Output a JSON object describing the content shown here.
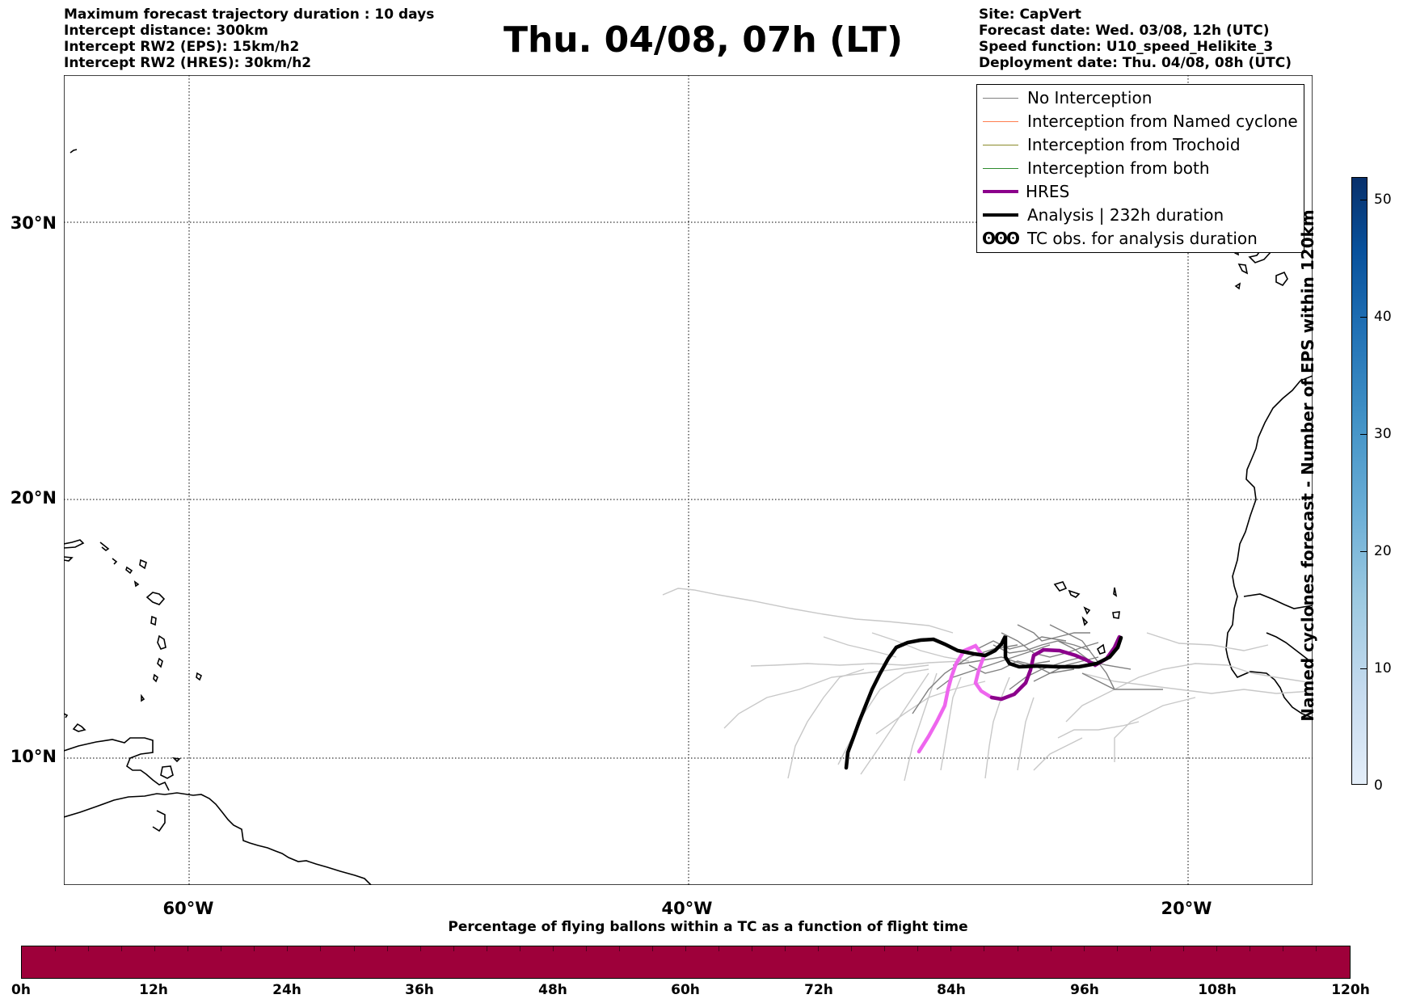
{
  "header_left": [
    "Maximum forecast trajectory duration : 10 days",
    "Intercept distance: 300km",
    "Intercept RW2 (EPS):  15km/h2",
    "Intercept RW2 (HRES): 30km/h2"
  ],
  "title": "Thu. 04/08, 07h (LT)",
  "header_right": [
    "Site: CapVert",
    "Forecast date: Wed. 03/08, 12h (UTC)",
    "Speed function: U10_speed_Helikite_3",
    "Deployment date: Thu. 04/08, 08h (UTC)"
  ],
  "map": {
    "lat_labels": [
      "30°N",
      "20°N",
      "10°N"
    ],
    "lon_labels": [
      "60°W",
      "40°W",
      "20°W"
    ],
    "gridlines": "dotted",
    "legend_placement": "top-right",
    "colors": {
      "no_interception": "#808080",
      "eps_member_light": "#c8c8c8",
      "interception_named_cyclone": "#ff7f50",
      "interception_trochoid": "#8b8b2a",
      "interception_both": "#2e8b2e",
      "hres": "#8b008b",
      "hres_later": "#ee66ee",
      "analysis": "#000000"
    }
  },
  "legend": [
    {
      "label": "No Interception",
      "color": "#808080",
      "width": 1
    },
    {
      "label": "Interception from Named cyclone",
      "color": "#ff7f50",
      "width": 1
    },
    {
      "label": "Interception from Trochoid",
      "color": "#8b8b2a",
      "width": 1
    },
    {
      "label": "Interception from both",
      "color": "#2e8b2e",
      "width": 1
    },
    {
      "label": "HRES",
      "color": "#8b008b",
      "width": 4
    },
    {
      "label": "Analysis | 232h duration",
      "color": "#000000",
      "width": 4
    },
    {
      "label": "TC obs. for analysis duration",
      "symbol": "ʘʘʘ"
    }
  ],
  "colorbar_vertical": {
    "label": "Named cyclones forecast - Number of EPS within 120km",
    "ticks": [
      "50",
      "40",
      "30",
      "20",
      "10",
      "0"
    ]
  },
  "colorbar_horizontal": {
    "title": "Percentage of flying ballons within a TC as a function of flight time",
    "color": "#9e003a",
    "ticks": [
      "0h",
      "12h",
      "24h",
      "36h",
      "48h",
      "60h",
      "72h",
      "84h",
      "96h",
      "108h",
      "120h"
    ]
  }
}
